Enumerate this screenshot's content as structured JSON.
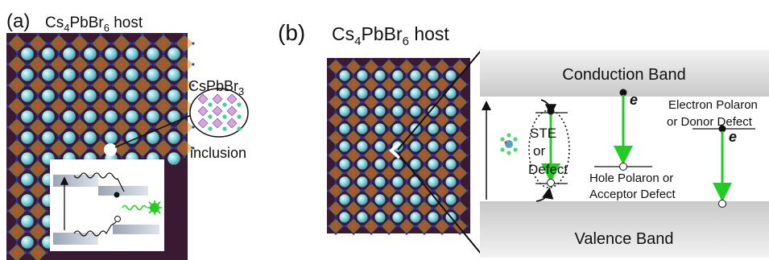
{
  "panel_a": {
    "tag": "(a)",
    "host_formula": "Cs",
    "host_sub1": "4",
    "host_pb": "PbBr",
    "host_sub2": "6",
    "host_word": " host",
    "inclusion_formula": "CsPbBr",
    "inclusion_sub": "3",
    "inclusion_word": "inclusion"
  },
  "panel_b": {
    "tag": "(b)",
    "host_formula": "Cs",
    "host_sub1": "4",
    "host_pb": "PbBr",
    "host_sub2": "6",
    "host_word": " host",
    "conduction_band": "Conduction Band",
    "valence_band": "Valence Band",
    "ste_line1": "STE",
    "ste_line2": "or",
    "ste_line3": "Defect",
    "hole_line1": "Hole Polaron or",
    "hole_line2": "Acceptor Defect",
    "electron_line1": "Electron Polaron",
    "electron_line2": "or Donor Defect",
    "e_symbol_1": "e",
    "e_symbol_2": "e"
  },
  "colors": {
    "lattice_bg": "#3a1a33",
    "sphere": "#7fd3dc",
    "octahedron": "#c8a23a",
    "pb_atom": "#e0441c",
    "br_atom": "#2a39c8",
    "band_gray": "#d6d6d6",
    "emission_green": "#22cc22"
  }
}
